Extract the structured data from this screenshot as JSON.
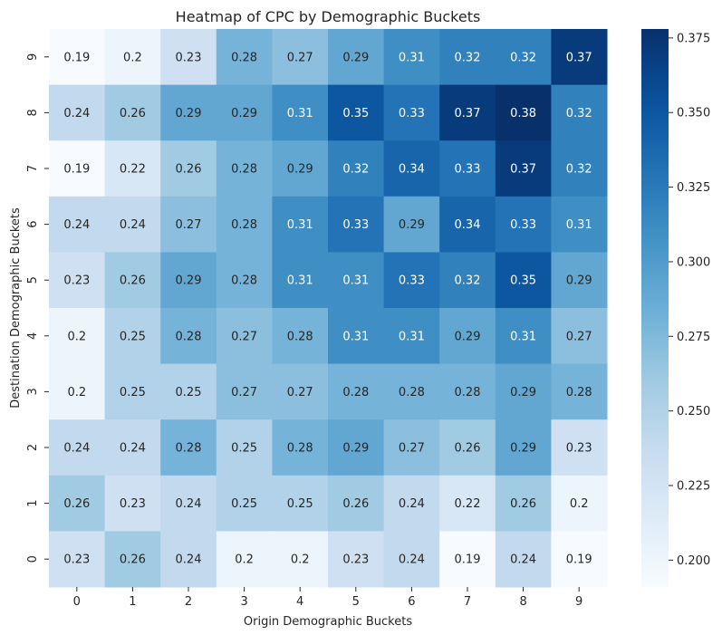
{
  "chart_data": {
    "type": "heatmap",
    "title": "Heatmap of CPC by Demographic Buckets",
    "xlabel": "Origin Demographic Buckets",
    "ylabel": "Destination Demographic Buckets",
    "x_categories": [
      "0",
      "1",
      "2",
      "3",
      "4",
      "5",
      "6",
      "7",
      "8",
      "9"
    ],
    "y_categories": [
      "9",
      "8",
      "7",
      "6",
      "5",
      "4",
      "3",
      "2",
      "1",
      "0"
    ],
    "values": [
      [
        0.19,
        0.2,
        0.23,
        0.28,
        0.27,
        0.29,
        0.31,
        0.32,
        0.32,
        0.37
      ],
      [
        0.24,
        0.26,
        0.29,
        0.29,
        0.31,
        0.35,
        0.33,
        0.37,
        0.38,
        0.32
      ],
      [
        0.19,
        0.22,
        0.26,
        0.28,
        0.29,
        0.32,
        0.34,
        0.33,
        0.37,
        0.32
      ],
      [
        0.24,
        0.24,
        0.27,
        0.28,
        0.31,
        0.33,
        0.29,
        0.34,
        0.33,
        0.31
      ],
      [
        0.23,
        0.26,
        0.29,
        0.28,
        0.31,
        0.31,
        0.33,
        0.32,
        0.35,
        0.29
      ],
      [
        0.2,
        0.25,
        0.28,
        0.27,
        0.28,
        0.31,
        0.31,
        0.29,
        0.31,
        0.27
      ],
      [
        0.2,
        0.25,
        0.25,
        0.27,
        0.27,
        0.28,
        0.28,
        0.28,
        0.29,
        0.28
      ],
      [
        0.24,
        0.24,
        0.28,
        0.25,
        0.28,
        0.29,
        0.27,
        0.26,
        0.29,
        0.23
      ],
      [
        0.26,
        0.23,
        0.24,
        0.25,
        0.25,
        0.26,
        0.24,
        0.22,
        0.26,
        0.2
      ],
      [
        0.23,
        0.26,
        0.24,
        0.2,
        0.2,
        0.23,
        0.24,
        0.19,
        0.24,
        0.19
      ]
    ],
    "colormap": "Blues",
    "colorbar": {
      "range": [
        0.191,
        0.378
      ],
      "ticks": [
        0.2,
        0.225,
        0.25,
        0.275,
        0.3,
        0.325,
        0.35,
        0.375
      ],
      "tick_labels": [
        "0.200",
        "0.225",
        "0.250",
        "0.275",
        "0.300",
        "0.325",
        "0.350",
        "0.375"
      ]
    },
    "grid": false
  }
}
